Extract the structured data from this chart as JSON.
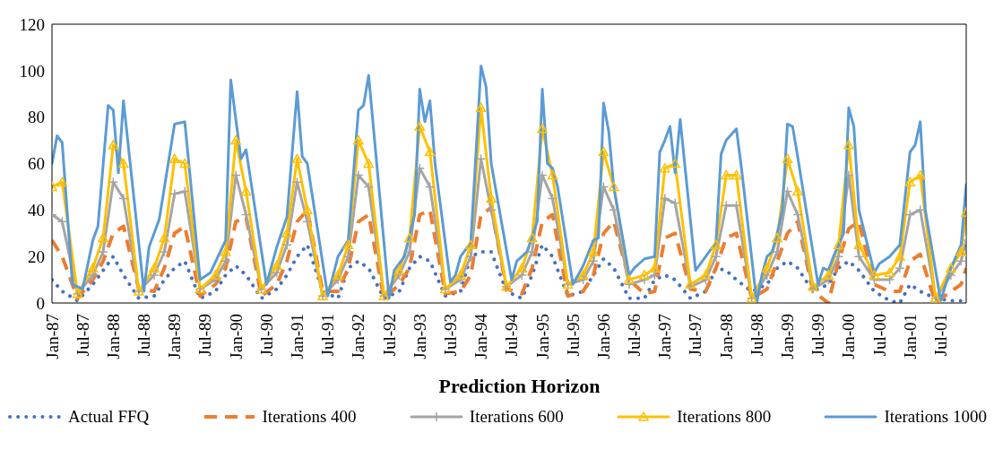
{
  "chart_data": {
    "type": "line",
    "xlabel": "Prediction Horizon",
    "x": [
      "1987-01",
      "1987-03",
      "1987-06",
      "1987-09",
      "1987-11",
      "1988-01",
      "1988-03",
      "1988-06",
      "1988-09",
      "1988-11",
      "1989-01",
      "1989-03",
      "1989-06",
      "1989-09",
      "1989-11",
      "1990-01",
      "1990-03",
      "1990-06",
      "1990-09",
      "1990-11",
      "1991-01",
      "1991-03",
      "1991-06",
      "1991-09",
      "1991-11",
      "1992-01",
      "1992-03",
      "1992-06",
      "1992-09",
      "1992-11",
      "1993-01",
      "1993-03",
      "1993-06",
      "1993-09",
      "1993-11",
      "1994-01",
      "1994-03",
      "1994-06",
      "1994-09",
      "1994-11",
      "1995-01",
      "1995-03",
      "1995-06",
      "1995-09",
      "1995-11",
      "1996-01",
      "1996-03",
      "1996-06",
      "1996-09",
      "1996-11",
      "1997-01",
      "1997-03",
      "1997-06",
      "1997-09",
      "1997-11",
      "1998-01",
      "1998-03",
      "1998-06",
      "1998-09",
      "1998-11",
      "1999-01",
      "1999-03",
      "1999-06",
      "1999-09",
      "1999-11",
      "2000-01",
      "2000-03",
      "2000-06",
      "2000-09",
      "2000-11",
      "2001-01",
      "2001-03",
      "2001-06",
      "2001-09",
      "2001-11",
      "2001-12"
    ],
    "series": [
      {
        "name": "Actual FFQ",
        "color": "#4472c4",
        "line_style": "dotted",
        "marker": "none",
        "values": [
          10,
          5,
          1,
          8,
          14,
          20,
          12,
          2,
          3,
          10,
          15,
          18,
          2,
          5,
          12,
          16,
          12,
          2,
          6,
          12,
          20,
          25,
          5,
          2,
          15,
          18,
          15,
          2,
          5,
          15,
          20,
          18,
          3,
          5,
          20,
          22,
          22,
          5,
          2,
          12,
          25,
          20,
          3,
          5,
          12,
          19,
          15,
          2,
          2,
          10,
          12,
          10,
          2,
          5,
          15,
          14,
          10,
          5,
          8,
          15,
          18,
          15,
          5,
          8,
          15,
          18,
          14,
          5,
          1,
          0,
          8,
          5,
          2,
          1,
          1,
          1
        ]
      },
      {
        "name": "Iterations 400",
        "color": "#ed7d31",
        "line_style": "dashed",
        "marker": "none",
        "values": [
          27,
          20,
          2,
          10,
          18,
          30,
          33,
          6,
          5,
          15,
          30,
          33,
          3,
          8,
          15,
          35,
          37,
          3,
          8,
          18,
          35,
          40,
          5,
          5,
          15,
          35,
          38,
          2,
          8,
          15,
          38,
          40,
          4,
          5,
          12,
          38,
          41,
          6,
          4,
          15,
          35,
          38,
          3,
          5,
          12,
          30,
          35,
          10,
          4,
          5,
          28,
          30,
          6,
          5,
          15,
          28,
          30,
          2,
          6,
          18,
          30,
          35,
          5,
          0,
          18,
          32,
          35,
          8,
          5,
          5,
          18,
          21,
          0,
          5,
          8,
          15
        ]
      },
      {
        "name": "Iterations 600",
        "color": "#a5a5a5",
        "line_style": "solid",
        "marker": "cross",
        "values": [
          38,
          35,
          4,
          12,
          22,
          52,
          45,
          5,
          12,
          22,
          47,
          48,
          6,
          10,
          18,
          55,
          38,
          6,
          13,
          25,
          52,
          35,
          3,
          10,
          20,
          55,
          50,
          3,
          12,
          22,
          58,
          50,
          6,
          10,
          20,
          62,
          40,
          7,
          12,
          22,
          55,
          45,
          8,
          10,
          18,
          50,
          40,
          8,
          10,
          12,
          45,
          43,
          7,
          10,
          20,
          42,
          42,
          2,
          12,
          22,
          48,
          38,
          6,
          10,
          20,
          55,
          20,
          10,
          10,
          15,
          38,
          40,
          2,
          12,
          18,
          27
        ]
      },
      {
        "name": "Iterations 800",
        "color": "#ffc000",
        "line_style": "solid",
        "marker": "triangle",
        "values": [
          50,
          52,
          4,
          15,
          28,
          68,
          60,
          5,
          15,
          28,
          62,
          60,
          6,
          12,
          22,
          70,
          48,
          6,
          16,
          30,
          62,
          40,
          3,
          12,
          25,
          70,
          60,
          3,
          14,
          28,
          76,
          65,
          6,
          12,
          25,
          84,
          45,
          7,
          15,
          28,
          75,
          55,
          8,
          12,
          22,
          65,
          50,
          10,
          12,
          15,
          58,
          60,
          8,
          12,
          25,
          55,
          55,
          2,
          15,
          28,
          62,
          48,
          7,
          12,
          25,
          68,
          25,
          12,
          13,
          20,
          52,
          55,
          2,
          15,
          22,
          39
        ]
      },
      {
        "name": "Iterations 1000",
        "color": "#5b9bd5",
        "line_style": "solid",
        "marker": "none",
        "x": [
          "1987-01",
          "1987-02",
          "1987-03",
          "1987-05",
          "1987-07",
          "1987-09",
          "1987-10",
          "1987-12",
          "1988-01",
          "1988-02",
          "1988-03",
          "1988-07",
          "1988-08",
          "1988-10",
          "1989-01",
          "1989-03",
          "1989-06",
          "1989-08",
          "1989-11",
          "1989-12",
          "1990-02",
          "1990-03",
          "1990-07",
          "1990-09",
          "1990-11",
          "1991-01",
          "1991-02",
          "1991-03",
          "1991-07",
          "1991-09",
          "1991-11",
          "1992-01",
          "1992-02",
          "1992-03",
          "1992-07",
          "1992-08",
          "1992-10",
          "1992-12",
          "1993-01",
          "1993-02",
          "1993-03",
          "1993-04",
          "1993-07",
          "1993-08",
          "1993-09",
          "1993-11",
          "1994-01",
          "1994-02",
          "1994-03",
          "1994-07",
          "1994-08",
          "1994-10",
          "1994-12",
          "1995-01",
          "1995-02",
          "1995-03",
          "1995-04",
          "1995-07",
          "1995-09",
          "1995-11",
          "1995-12",
          "1996-01",
          "1996-02",
          "1996-03",
          "1996-06",
          "1996-07",
          "1996-09",
          "1996-11",
          "1996-12",
          "1997-01",
          "1997-02",
          "1997-03",
          "1997-04",
          "1997-07",
          "1997-09",
          "1997-11",
          "1997-12",
          "1998-01",
          "1998-03",
          "1998-04",
          "1998-07",
          "1998-08",
          "1998-09",
          "1998-10",
          "1998-11",
          "1998-12",
          "1999-01",
          "1999-02",
          "1999-03",
          "1999-07",
          "1999-08",
          "1999-09",
          "1999-10",
          "1999-12",
          "2000-01",
          "2000-02",
          "2000-03",
          "2000-06",
          "2000-07",
          "2000-09",
          "2000-11",
          "2000-12",
          "2001-01",
          "2001-02",
          "2001-03",
          "2001-04",
          "2001-07",
          "2001-09",
          "2001-11",
          "2001-12"
        ],
        "values": [
          60,
          72,
          69,
          8,
          6,
          27,
          33,
          85,
          83,
          56,
          87,
          5,
          24,
          36,
          77,
          78,
          10,
          13,
          27,
          96,
          62,
          66,
          8,
          24,
          37,
          91,
          63,
          60,
          3,
          20,
          27,
          83,
          85,
          98,
          2,
          14,
          20,
          38,
          92,
          78,
          87,
          60,
          9,
          12,
          20,
          26,
          102,
          93,
          60,
          10,
          18,
          22,
          35,
          92,
          60,
          58,
          50,
          8,
          16,
          27,
          28,
          86,
          74,
          50,
          12,
          15,
          19,
          20,
          65,
          70,
          76,
          56,
          79,
          14,
          20,
          26,
          64,
          70,
          75,
          58,
          0,
          12,
          20,
          22,
          30,
          40,
          77,
          76,
          63,
          8,
          15,
          14,
          20,
          30,
          84,
          76,
          40,
          13,
          17,
          20,
          25,
          45,
          65,
          68,
          78,
          40,
          1,
          15,
          25,
          51
        ]
      }
    ],
    "xlim": [
      "1987-01",
      "2001-12"
    ],
    "xticks": [
      {
        "value": "1987-01",
        "label": "Jan-87"
      },
      {
        "value": "1987-07",
        "label": "Jul-87"
      },
      {
        "value": "1988-01",
        "label": "Jan-88"
      },
      {
        "value": "1988-07",
        "label": "Jul-88"
      },
      {
        "value": "1989-01",
        "label": "Jan-89"
      },
      {
        "value": "1989-07",
        "label": "Jul-89"
      },
      {
        "value": "1990-01",
        "label": "Jan-90"
      },
      {
        "value": "1990-07",
        "label": "Jul-90"
      },
      {
        "value": "1991-01",
        "label": "Jan-91"
      },
      {
        "value": "1991-07",
        "label": "Jul-91"
      },
      {
        "value": "1992-01",
        "label": "Jan-92"
      },
      {
        "value": "1992-07",
        "label": "Jul-92"
      },
      {
        "value": "1993-01",
        "label": "Jan-93"
      },
      {
        "value": "1993-07",
        "label": "Jul-93"
      },
      {
        "value": "1994-01",
        "label": "Jan-94"
      },
      {
        "value": "1994-07",
        "label": "Jul-94"
      },
      {
        "value": "1995-01",
        "label": "Jan-95"
      },
      {
        "value": "1995-07",
        "label": "Jul-95"
      },
      {
        "value": "1996-01",
        "label": "Jan-96"
      },
      {
        "value": "1996-07",
        "label": "Jul-96"
      },
      {
        "value": "1997-01",
        "label": "Jan-97"
      },
      {
        "value": "1997-07",
        "label": "Jul-97"
      },
      {
        "value": "1998-01",
        "label": "Jan-98"
      },
      {
        "value": "1998-07",
        "label": "Jul-98"
      },
      {
        "value": "1999-01",
        "label": "Jan-99"
      },
      {
        "value": "1999-07",
        "label": "Jul-99"
      },
      {
        "value": "2000-01",
        "label": "Jan-00"
      },
      {
        "value": "2000-07",
        "label": "Jul-00"
      },
      {
        "value": "2001-01",
        "label": "Jan-01"
      },
      {
        "value": "2001-07",
        "label": "Jul-01"
      }
    ],
    "ylim": [
      0,
      120
    ],
    "yticks": [
      0,
      20,
      40,
      60,
      80,
      100,
      120
    ],
    "legend": "bottom"
  }
}
